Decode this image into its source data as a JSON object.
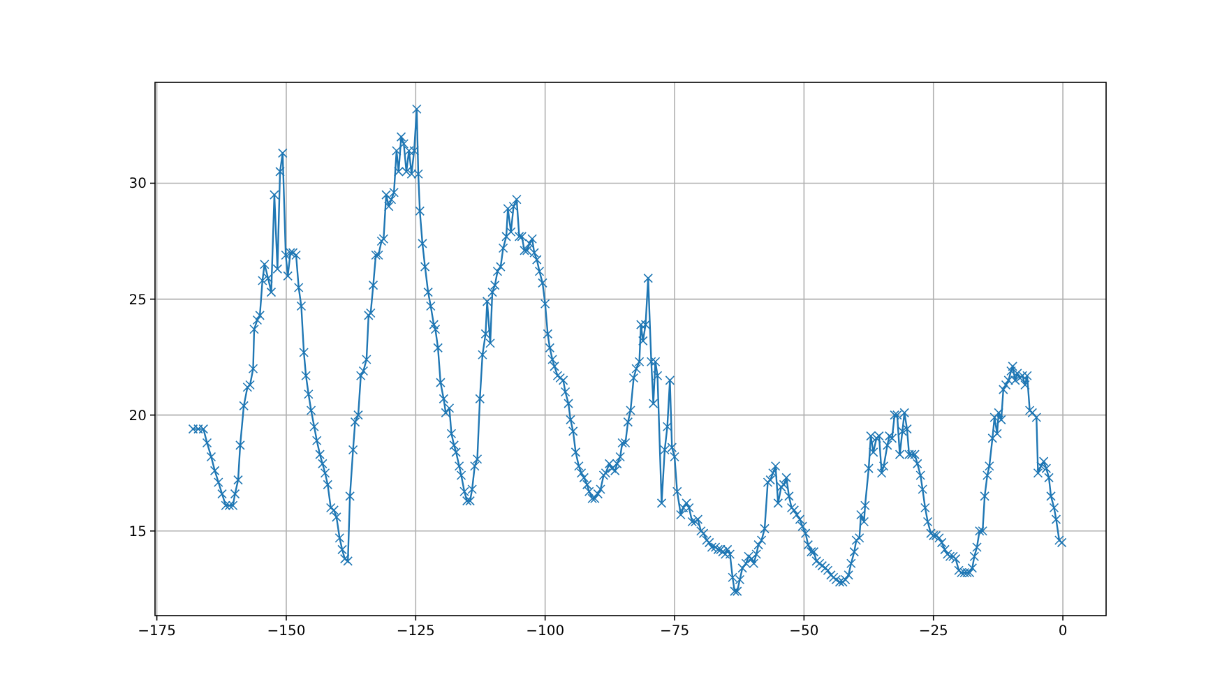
{
  "chart_data": {
    "type": "line",
    "xlim": [
      -175.35,
      8.35
    ],
    "ylim": [
      11.35,
      34.35
    ],
    "xticks": [
      {
        "value": -175,
        "label": "−175"
      },
      {
        "value": -150,
        "label": "−150"
      },
      {
        "value": -125,
        "label": "−125"
      },
      {
        "value": -100,
        "label": "−100"
      },
      {
        "value": -75,
        "label": "−75"
      },
      {
        "value": -50,
        "label": "−50"
      },
      {
        "value": -25,
        "label": "−25"
      },
      0
    ],
    "yticks": [
      15,
      20,
      25,
      30
    ],
    "grid": true,
    "marker": "cross",
    "line_style": "solid",
    "series": [
      {
        "color": "#1f77b4",
        "x": [
          -168.0,
          -167.0,
          -166.0,
          -165.3,
          -164.5,
          -163.8,
          -163.1,
          -162.4,
          -161.7,
          -161.0,
          -160.3,
          -159.9,
          -159.3,
          -158.9,
          -158.2,
          -157.5,
          -157.0,
          -156.4,
          -156.2,
          -155.6,
          -155.1,
          -154.6,
          -154.2,
          -153.5,
          -152.9,
          -152.3,
          -151.7,
          -151.2,
          -150.7,
          -150.1,
          -149.7,
          -149.2,
          -148.7,
          -148.1,
          -147.6,
          -147.1,
          -146.6,
          -146.2,
          -145.7,
          -145.2,
          -144.6,
          -144.1,
          -143.5,
          -143.0,
          -142.5,
          -142.0,
          -141.4,
          -140.8,
          -140.3,
          -139.7,
          -139.2,
          -138.7,
          -138.1,
          -137.7,
          -137.1,
          -136.7,
          -136.1,
          -135.6,
          -135.1,
          -134.5,
          -134.1,
          -133.7,
          -133.2,
          -132.7,
          -132.2,
          -131.6,
          -131.2,
          -130.7,
          -130.2,
          -129.7,
          -129.2,
          -128.7,
          -128.3,
          -127.8,
          -127.3,
          -126.8,
          -126.3,
          -125.8,
          -125.3,
          -124.8,
          -124.5,
          -124.2,
          -123.7,
          -123.2,
          -122.6,
          -122.1,
          -121.5,
          -121.2,
          -120.7,
          -120.2,
          -119.6,
          -119.2,
          -118.5,
          -118.1,
          -117.6,
          -117.2,
          -116.6,
          -116.2,
          -115.6,
          -115.1,
          -114.5,
          -114.1,
          -113.6,
          -113.1,
          -112.6,
          -112.1,
          -111.5,
          -111.2,
          -110.6,
          -110.2,
          -109.7,
          -109.2,
          -108.6,
          -108.1,
          -107.5,
          -107.2,
          -106.6,
          -106.1,
          -105.5,
          -105.0,
          -104.5,
          -104.0,
          -103.5,
          -103.0,
          -102.5,
          -102.1,
          -101.6,
          -101.1,
          -100.5,
          -100.0,
          -99.5,
          -99.1,
          -98.6,
          -98.2,
          -97.6,
          -97.1,
          -96.5,
          -96.1,
          -95.5,
          -95.1,
          -94.6,
          -94.1,
          -93.5,
          -93.0,
          -92.5,
          -91.9,
          -91.5,
          -90.9,
          -90.4,
          -89.8,
          -89.3,
          -88.7,
          -88.3,
          -87.6,
          -87.1,
          -86.5,
          -86.1,
          -85.5,
          -85.1,
          -84.5,
          -84.0,
          -83.5,
          -82.9,
          -82.4,
          -81.8,
          -81.5,
          -81.1,
          -80.6,
          -80.1,
          -79.5,
          -79.1,
          -78.7,
          -78.3,
          -77.5,
          -76.9,
          -76.4,
          -75.9,
          -75.5,
          -75.0,
          -74.5,
          -73.8,
          -73.3,
          -72.7,
          -72.2,
          -71.6,
          -71.0,
          -70.5,
          -69.9,
          -69.4,
          -68.8,
          -68.3,
          -67.8,
          -67.1,
          -66.6,
          -66.1,
          -65.7,
          -65.2,
          -64.8,
          -64.3,
          -63.8,
          -63.4,
          -62.9,
          -62.4,
          -61.9,
          -61.2,
          -60.7,
          -60.1,
          -59.7,
          -59.2,
          -58.8,
          -58.2,
          -57.6,
          -57.0,
          -56.5,
          -56.0,
          -55.5,
          -55.0,
          -54.4,
          -53.9,
          -53.4,
          -52.9,
          -52.4,
          -51.9,
          -51.4,
          -50.8,
          -50.3,
          -49.7,
          -49.2,
          -48.6,
          -48.1,
          -47.6,
          -47.0,
          -46.5,
          -45.9,
          -45.4,
          -44.8,
          -44.3,
          -43.8,
          -43.1,
          -42.5,
          -42.0,
          -41.4,
          -40.9,
          -40.3,
          -39.9,
          -39.3,
          -39.0,
          -38.4,
          -38.2,
          -37.5,
          -37.1,
          -36.6,
          -36.0,
          -35.5,
          -35.0,
          -34.6,
          -33.9,
          -33.5,
          -33.0,
          -32.5,
          -32.0,
          -31.5,
          -31.0,
          -30.6,
          -30.1,
          -29.7,
          -29.2,
          -28.6,
          -28.1,
          -27.5,
          -27.1,
          -26.6,
          -26.1,
          -25.5,
          -25.0,
          -24.5,
          -23.9,
          -23.4,
          -22.8,
          -22.3,
          -21.8,
          -21.2,
          -20.7,
          -20.1,
          -19.6,
          -19.0,
          -18.5,
          -18.0,
          -17.5,
          -17.1,
          -16.6,
          -16.1,
          -15.5,
          -15.1,
          -14.6,
          -14.2,
          -13.6,
          -13.2,
          -12.7,
          -12.4,
          -11.9,
          -11.5,
          -11.0,
          -10.5,
          -10.0,
          -9.7,
          -9.2,
          -8.8,
          -8.3,
          -7.8,
          -7.3,
          -6.9,
          -6.4,
          -5.9,
          -5.1,
          -4.8,
          -4.2,
          -3.7,
          -3.2,
          -2.7,
          -2.3,
          -1.7,
          -1.3,
          -0.7,
          -0.2
        ],
        "values": [
          19.4,
          19.4,
          19.4,
          18.8,
          18.2,
          17.6,
          17.1,
          16.6,
          16.1,
          16.1,
          16.1,
          16.6,
          17.2,
          18.7,
          20.4,
          21.2,
          21.3,
          22.0,
          23.7,
          24.1,
          24.3,
          25.8,
          26.5,
          25.9,
          25.3,
          29.5,
          26.3,
          30.5,
          31.3,
          26.9,
          26.0,
          27.0,
          27.0,
          26.9,
          25.5,
          24.7,
          22.7,
          21.7,
          20.9,
          20.2,
          19.5,
          18.9,
          18.3,
          17.9,
          17.5,
          17.0,
          16.0,
          15.9,
          15.6,
          14.7,
          14.2,
          13.8,
          13.7,
          16.5,
          18.5,
          19.7,
          20.0,
          21.7,
          21.9,
          22.4,
          24.3,
          24.4,
          25.6,
          26.9,
          26.9,
          27.5,
          27.6,
          29.5,
          29.0,
          29.3,
          29.6,
          31.4,
          30.5,
          32.0,
          31.7,
          30.5,
          31.4,
          30.4,
          31.4,
          33.2,
          30.4,
          28.8,
          27.4,
          26.4,
          25.3,
          24.7,
          23.9,
          23.7,
          22.9,
          21.4,
          20.7,
          20.1,
          20.3,
          19.2,
          18.7,
          18.4,
          17.8,
          17.4,
          16.7,
          16.3,
          16.3,
          16.8,
          17.8,
          18.1,
          20.7,
          22.6,
          23.5,
          24.9,
          23.1,
          25.3,
          25.6,
          26.2,
          26.4,
          27.2,
          27.7,
          28.9,
          27.9,
          29.0,
          29.3,
          27.7,
          27.7,
          27.1,
          27.1,
          27.4,
          27.6,
          27.0,
          26.7,
          26.2,
          25.7,
          24.8,
          23.5,
          22.9,
          22.4,
          22.1,
          21.7,
          21.6,
          21.5,
          21.0,
          20.5,
          19.8,
          19.3,
          18.4,
          17.8,
          17.5,
          17.3,
          17.0,
          16.7,
          16.4,
          16.4,
          16.6,
          16.8,
          17.4,
          17.5,
          17.9,
          17.7,
          17.6,
          17.9,
          18.2,
          18.8,
          18.8,
          19.7,
          20.2,
          21.6,
          22.0,
          22.3,
          23.9,
          23.2,
          23.9,
          25.9,
          22.3,
          20.5,
          22.3,
          21.7,
          16.2,
          18.5,
          19.5,
          21.5,
          18.6,
          18.2,
          16.7,
          15.7,
          16.0,
          16.2,
          16.0,
          15.4,
          15.4,
          15.5,
          15.0,
          14.9,
          14.6,
          14.5,
          14.3,
          14.3,
          14.2,
          14.2,
          14.1,
          14.0,
          14.2,
          14.0,
          13.0,
          12.4,
          12.4,
          12.9,
          13.4,
          13.6,
          13.9,
          13.8,
          13.6,
          14.0,
          14.4,
          14.6,
          15.1,
          17.1,
          17.2,
          17.5,
          17.8,
          16.2,
          16.9,
          17.0,
          17.3,
          16.5,
          16.0,
          15.9,
          15.7,
          15.5,
          15.2,
          14.9,
          14.4,
          14.1,
          14.1,
          13.7,
          13.6,
          13.5,
          13.4,
          13.3,
          13.1,
          13.0,
          12.9,
          12.8,
          12.8,
          12.9,
          13.1,
          13.6,
          14.1,
          14.6,
          14.7,
          15.7,
          15.4,
          16.1,
          17.7,
          19.1,
          18.4,
          19.0,
          19.1,
          17.5,
          17.8,
          18.7,
          19.1,
          19.0,
          20.0,
          20.0,
          18.3,
          19.3,
          20.1,
          19.4,
          18.3,
          18.3,
          18.3,
          17.9,
          17.4,
          16.8,
          16.0,
          15.4,
          14.9,
          14.8,
          14.8,
          14.7,
          14.5,
          14.2,
          14.0,
          13.9,
          13.9,
          13.8,
          13.3,
          13.2,
          13.2,
          13.2,
          13.2,
          13.4,
          13.9,
          14.3,
          15.0,
          15.0,
          16.5,
          17.4,
          17.8,
          19.0,
          19.9,
          19.2,
          20.1,
          19.8,
          21.1,
          21.3,
          21.5,
          21.9,
          22.1,
          21.5,
          21.8,
          21.6,
          21.7,
          21.3,
          21.7,
          20.2,
          20.1,
          19.9,
          17.5,
          17.8,
          18.0,
          17.7,
          17.3,
          16.5,
          16.0,
          15.5,
          14.6,
          14.5
        ]
      }
    ]
  }
}
